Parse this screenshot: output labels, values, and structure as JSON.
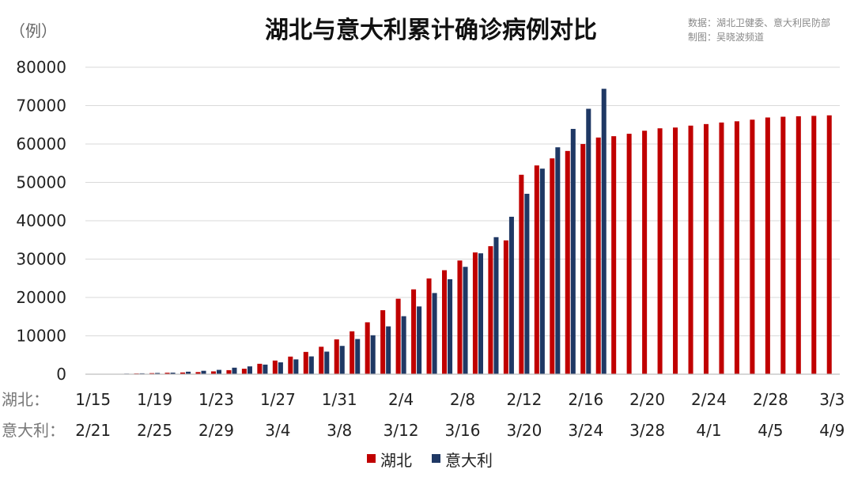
{
  "chart_data": {
    "type": "bar",
    "title": "湖北与意大利累计确诊病例对比",
    "unit_label": "（例）",
    "source_lines": [
      "数据：湖北卫健委、意大利民防部",
      "制图：吴晓波频道"
    ],
    "ylim": [
      0,
      80000
    ],
    "yticks": [
      0,
      10000,
      20000,
      30000,
      40000,
      50000,
      60000,
      70000,
      80000
    ],
    "row_labels": [
      "湖北：",
      "意大利："
    ],
    "x_labels_hubei": [
      "1/15",
      "1/19",
      "1/23",
      "1/27",
      "1/31",
      "2/4",
      "2/8",
      "2/12",
      "2/16",
      "2/20",
      "2/24",
      "2/28",
      "3/3"
    ],
    "x_labels_italy": [
      "2/21",
      "2/25",
      "2/29",
      "3/4",
      "3/8",
      "3/12",
      "3/16",
      "3/20",
      "3/24",
      "3/28",
      "4/1",
      "4/5",
      "4/9"
    ],
    "label_every": 4,
    "colors": {
      "湖北": "#c00000",
      "意大利": "#1f3864"
    },
    "series": [
      {
        "name": "湖北",
        "values": [
          0,
          0,
          0,
          200,
          270,
          375,
          444,
          549,
          729,
          1052,
          1423,
          2714,
          3554,
          4586,
          5806,
          7153,
          9074,
          11177,
          13522,
          16678,
          19665,
          22112,
          24953,
          27100,
          29631,
          31728,
          33366,
          34874,
          51986,
          54406,
          56249,
          58182,
          59989,
          61682,
          62031,
          62662,
          63454,
          64084,
          64287,
          64786,
          65187,
          65596,
          65914,
          66337,
          66907,
          67103,
          67217,
          67332,
          67466
        ]
      },
      {
        "name": "意大利",
        "values": [
          20,
          79,
          150,
          229,
          322,
          400,
          650,
          888,
          1128,
          1694,
          2036,
          2502,
          3089,
          3858,
          4636,
          5883,
          7375,
          9172,
          10149,
          12462,
          15113,
          17660,
          21157,
          24747,
          27980,
          31506,
          35713,
          41035,
          47021,
          53578,
          59138,
          63927,
          69176,
          74386
        ]
      }
    ],
    "legend": [
      "湖北",
      "意大利"
    ],
    "legend_position": "bottom-center",
    "grid": true
  }
}
